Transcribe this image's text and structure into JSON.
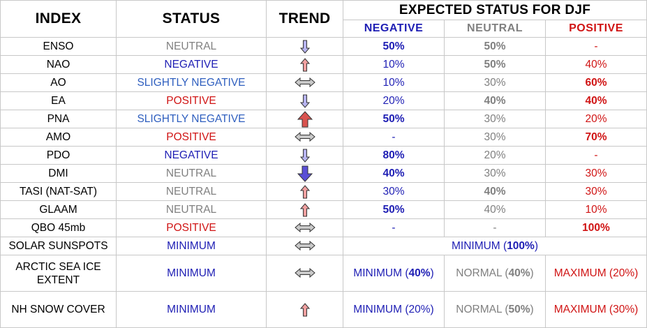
{
  "headers": {
    "index": "INDEX",
    "status": "STATUS",
    "trend": "TREND",
    "expected": "EXPECTED STATUS FOR DJF",
    "negative": "NEGATIVE",
    "neutral": "NEUTRAL",
    "positive": "POSITIVE"
  },
  "colors": {
    "negative": "#1e1eb4",
    "neutral": "#808080",
    "positive": "#d01414",
    "slightly_negative": "#2f5fbf",
    "arrow_up": "#f0a0a0",
    "arrow_up_large": "#d9534f",
    "arrow_down": "#b7b4f0",
    "arrow_down_large": "#5a4fd6",
    "arrow_side": "#c9c9c9"
  },
  "rows": [
    {
      "index": "ENSO",
      "status": "NEUTRAL",
      "status_class": "neu",
      "trend": "down-small",
      "neg": "50%",
      "neg_bold": true,
      "neu": "50%",
      "neu_bold": true,
      "pos": "-",
      "pos_bold": false
    },
    {
      "index": "NAO",
      "status": "NEGATIVE",
      "status_class": "neg",
      "trend": "up-small",
      "neg": "10%",
      "neg_bold": false,
      "neu": "50%",
      "neu_bold": true,
      "pos": "40%",
      "pos_bold": false
    },
    {
      "index": "AO",
      "status": "SLIGHTLY NEGATIVE",
      "status_class": "slneg",
      "trend": "side",
      "neg": "10%",
      "neg_bold": false,
      "neu": "30%",
      "neu_bold": false,
      "pos": "60%",
      "pos_bold": true
    },
    {
      "index": "EA",
      "status": "POSITIVE",
      "status_class": "pos",
      "trend": "down-small",
      "neg": "20%",
      "neg_bold": false,
      "neu": "40%",
      "neu_bold": true,
      "pos": "40%",
      "pos_bold": true
    },
    {
      "index": "PNA",
      "status": "SLIGHTLY NEGATIVE",
      "status_class": "slneg",
      "trend": "up-large",
      "neg": "50%",
      "neg_bold": true,
      "neu": "30%",
      "neu_bold": false,
      "pos": "20%",
      "pos_bold": false
    },
    {
      "index": "AMO",
      "status": "POSITIVE",
      "status_class": "pos",
      "trend": "side",
      "neg": "-",
      "neg_bold": false,
      "neu": "30%",
      "neu_bold": false,
      "pos": "70%",
      "pos_bold": true
    },
    {
      "index": "PDO",
      "status": "NEGATIVE",
      "status_class": "neg",
      "trend": "down-small",
      "neg": "80%",
      "neg_bold": true,
      "neu": "20%",
      "neu_bold": false,
      "pos": "-",
      "pos_bold": false
    },
    {
      "index": "DMI",
      "status": "NEUTRAL",
      "status_class": "neu",
      "trend": "down-large",
      "neg": "40%",
      "neg_bold": true,
      "neu": "30%",
      "neu_bold": false,
      "pos": "30%",
      "pos_bold": false
    },
    {
      "index": "TASI (NAT-SAT)",
      "status": "NEUTRAL",
      "status_class": "neu",
      "trend": "up-small",
      "neg": "30%",
      "neg_bold": false,
      "neu": "40%",
      "neu_bold": true,
      "pos": "30%",
      "pos_bold": false
    },
    {
      "index": "GLAAM",
      "status": "NEUTRAL",
      "status_class": "neu",
      "trend": "up-small",
      "neg": "50%",
      "neg_bold": true,
      "neu": "40%",
      "neu_bold": false,
      "pos": "10%",
      "pos_bold": false
    },
    {
      "index": "QBO 45mb",
      "status": "POSITIVE",
      "status_class": "pos",
      "trend": "side",
      "neg": "-",
      "neg_bold": false,
      "neu": "-",
      "neu_bold": false,
      "pos": "100%",
      "pos_bold": true
    }
  ],
  "solar": {
    "index": "SOLAR SUNSPOTS",
    "status": "MINIMUM",
    "trend": "side",
    "expected_label": "MINIMUM (",
    "expected_value": "100%",
    "expected_close": ")"
  },
  "arctic": {
    "index_line1": "ARCTIC SEA ICE",
    "index_line2": "EXTENT",
    "status": "MINIMUM",
    "trend": "side",
    "neg_label": "MINIMUM (",
    "neg_value": "40%",
    "neg_close": ")",
    "neu_label": "NORMAL (",
    "neu_value": "40%",
    "neu_close": ")",
    "pos_label": "MAXIMUM (20%)"
  },
  "snow": {
    "index": "NH SNOW COVER",
    "status": "MINIMUM",
    "trend": "up-small",
    "neg_label": "MINIMUM (20%)",
    "neu_label": "NORMAL (",
    "neu_value": "50%",
    "neu_close": ")",
    "pos_label": "MAXIMUM (30%)"
  }
}
